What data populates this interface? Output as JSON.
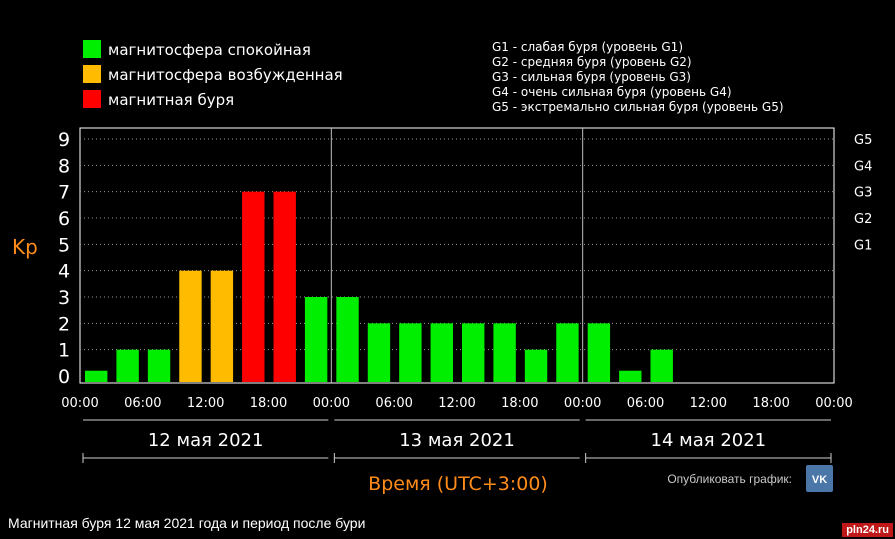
{
  "chart_data": {
    "type": "bar",
    "ylabel": "Kp",
    "xlabel": "Время (UTC+3:00)",
    "ylim": [
      0,
      9
    ],
    "yticks": [
      0,
      1,
      2,
      3,
      4,
      5,
      6,
      7,
      8,
      9
    ],
    "storm_levels": [
      {
        "value": 5,
        "label": "G1"
      },
      {
        "value": 6,
        "label": "G2"
      },
      {
        "value": 7,
        "label": "G3"
      },
      {
        "value": 8,
        "label": "G4"
      },
      {
        "value": 9,
        "label": "G5"
      }
    ],
    "time_ticks": [
      "00:00",
      "06:00",
      "12:00",
      "18:00",
      "00:00",
      "06:00",
      "12:00",
      "18:00",
      "00:00",
      "06:00",
      "12:00",
      "18:00",
      "00:00"
    ],
    "days": [
      "12 мая 2021",
      "13 мая 2021",
      "14 мая 2021"
    ],
    "slots": 24,
    "values": [
      0.2,
      1,
      1,
      4,
      4,
      7,
      7,
      3,
      3,
      2,
      2,
      2,
      2,
      2,
      1,
      2,
      2,
      0.2,
      1
    ],
    "status": [
      "quiet",
      "quiet",
      "quiet",
      "active",
      "active",
      "storm",
      "storm",
      "quiet",
      "quiet",
      "quiet",
      "quiet",
      "quiet",
      "quiet",
      "quiet",
      "quiet",
      "quiet",
      "quiet",
      "quiet",
      "quiet"
    ],
    "grid": true
  },
  "legend": {
    "items": [
      {
        "label": "магнитосфера спокойная",
        "color": "#00ee00"
      },
      {
        "label": "магнитосфера возбужденная",
        "color": "#ffbb00"
      },
      {
        "label": "магнитная буря",
        "color": "#ff0000"
      }
    ],
    "storm_scale": [
      "G1 - слабая буря (уровень G1)",
      "G2 - средняя буря (уровень G2)",
      "G3 - сильная буря (уровень G3)",
      "G4 - очень сильная буря (уровень G4)",
      "G5 - экстремально сильная буря (уровень G5)"
    ]
  },
  "publish": {
    "label": "Опубликовать график:",
    "icon": "vk-icon",
    "text": "VK"
  },
  "caption": "Магнитная буря 12 мая 2021 года и период после бури",
  "watermark": "pln24.ru",
  "colors": {
    "quiet": "#00ee00",
    "active": "#ffbb00",
    "storm": "#ff0000",
    "accent": "#ff8c1a",
    "vk": "#4a76a8"
  }
}
